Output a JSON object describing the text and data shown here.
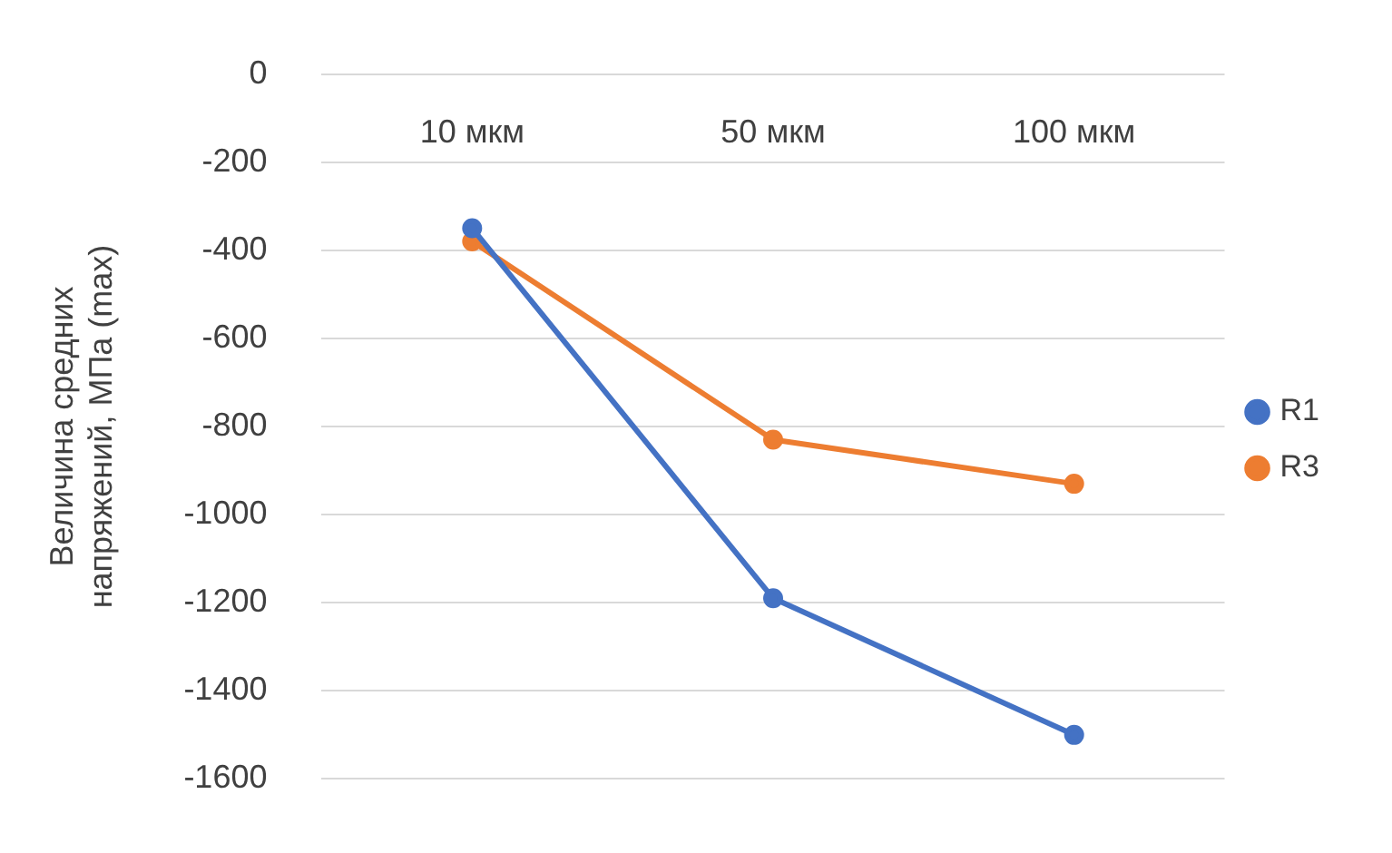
{
  "chart_data": {
    "type": "line",
    "ylabel": "Величина средних\nнапряжений, МПа (max)",
    "categories": [
      "10 мкм",
      "50 мкм",
      "100 мкм"
    ],
    "series": [
      {
        "name": "R1",
        "color": "#4472c4",
        "values": [
          -350,
          -1190,
          -1500
        ]
      },
      {
        "name": "R3",
        "color": "#ed7d31",
        "values": [
          -380,
          -830,
          -930
        ]
      }
    ],
    "ylim": [
      -1600,
      0
    ],
    "yticks": [
      0,
      -200,
      -400,
      -600,
      -800,
      -1000,
      -1200,
      -1400,
      -1600
    ],
    "grid": "y",
    "legend": "right",
    "marker": "circle",
    "line_style": "solid"
  }
}
